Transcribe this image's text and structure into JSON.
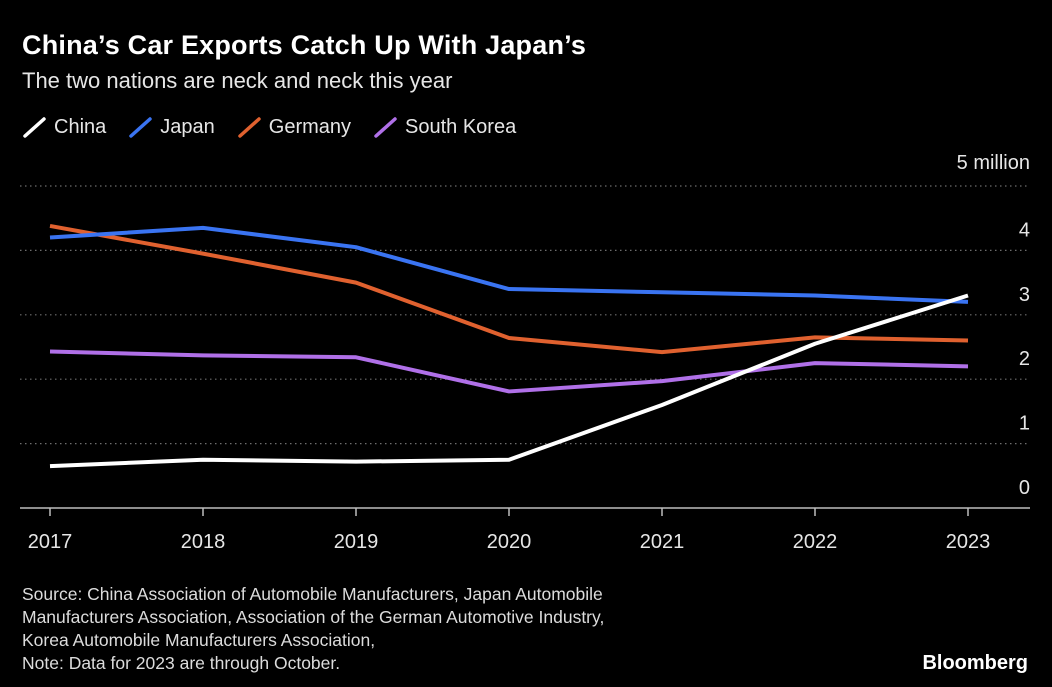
{
  "header": {
    "title": "China’s Car Exports Catch Up With Japan’s",
    "subtitle": "The two nations are neck and neck this year",
    "unit_label": "5 million"
  },
  "legend": [
    {
      "name": "China",
      "color": "#ffffff"
    },
    {
      "name": "Japan",
      "color": "#3a74f2"
    },
    {
      "name": "Germany",
      "color": "#e0612f"
    },
    {
      "name": "South Korea",
      "color": "#b070e8"
    }
  ],
  "chart_data": {
    "type": "line",
    "title": "China’s Car Exports Catch Up With Japan’s",
    "subtitle": "The two nations are neck and neck this year",
    "xlabel": "",
    "ylabel": "5 million",
    "x": [
      "2017",
      "2018",
      "2019",
      "2020",
      "2021",
      "2022",
      "2023"
    ],
    "ylim": [
      0,
      5
    ],
    "yticks": [
      "0",
      "1",
      "2",
      "3",
      "4"
    ],
    "grid": true,
    "legend_position": "top-left",
    "series": [
      {
        "name": "China",
        "color": "#ffffff",
        "values": [
          0.65,
          0.75,
          0.72,
          0.75,
          1.6,
          2.55,
          3.3
        ]
      },
      {
        "name": "Japan",
        "color": "#3a74f2",
        "values": [
          4.2,
          4.35,
          4.05,
          3.4,
          3.35,
          3.3,
          3.2
        ]
      },
      {
        "name": "Germany",
        "color": "#e0612f",
        "values": [
          4.38,
          3.95,
          3.5,
          2.64,
          2.42,
          2.65,
          2.6
        ]
      },
      {
        "name": "South Korea",
        "color": "#b070e8",
        "values": [
          2.43,
          2.37,
          2.34,
          1.81,
          1.97,
          2.25,
          2.2
        ]
      }
    ]
  },
  "footer": {
    "source_lines": [
      "Source: China Association of Automobile Manufacturers, Japan Automobile",
      "Manufacturers Association, Association of the German Automotive Industry,",
      "Korea Automobile Manufacturers Association,",
      "Note: Data for 2023 are through October."
    ],
    "brand": "Bloomberg"
  }
}
